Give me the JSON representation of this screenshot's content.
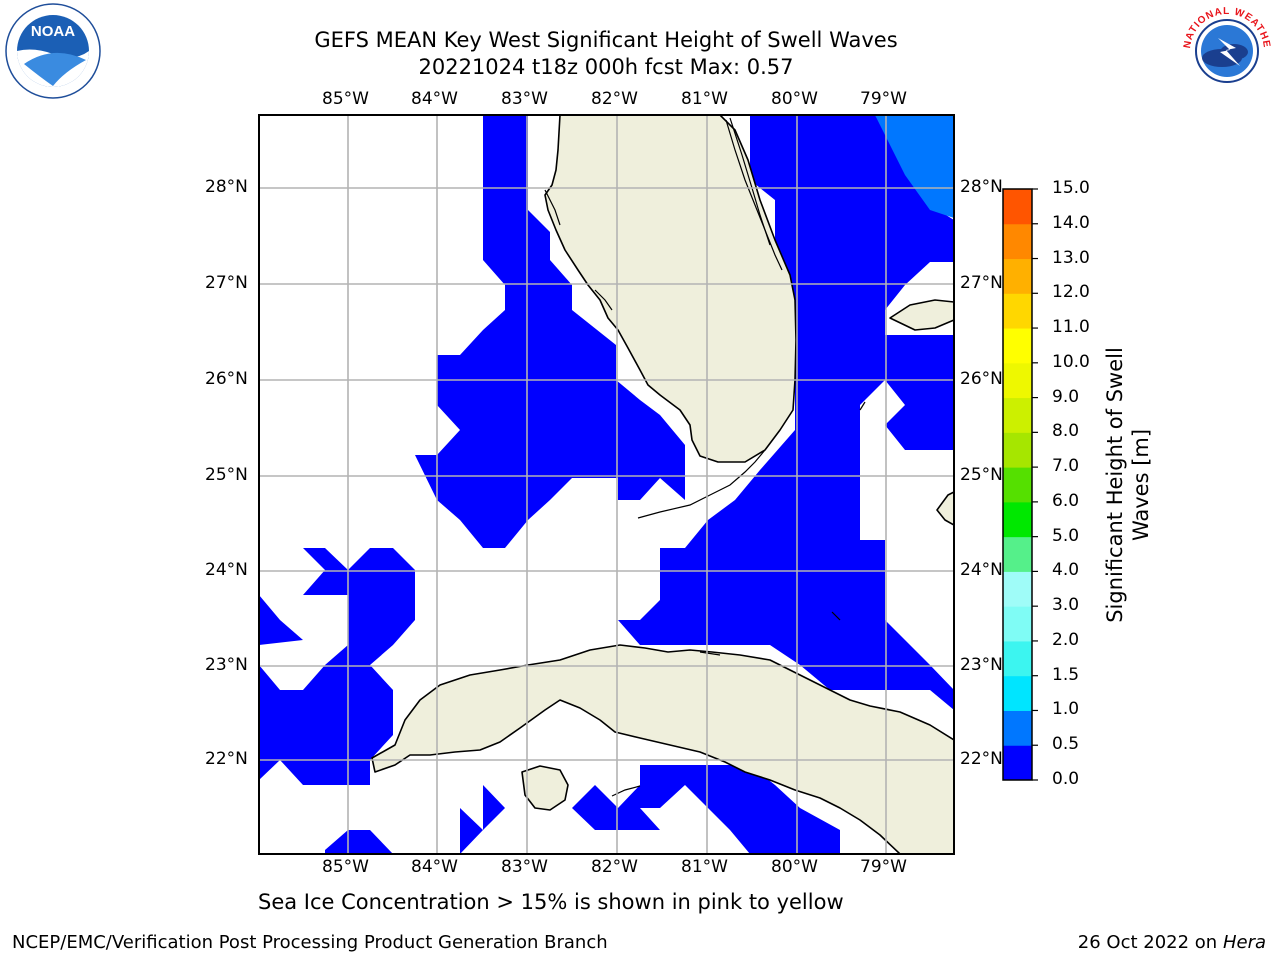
{
  "title": {
    "line1": "GEFS MEAN Key West Significant Height of Swell Waves",
    "line2": "20221024 t18z 000h fcst   Max: 0.57"
  },
  "axes": {
    "lon_labels": [
      "85°W",
      "84°W",
      "83°W",
      "82°W",
      "81°W",
      "80°W",
      "79°W"
    ],
    "lat_labels": [
      "28°N",
      "27°N",
      "26°N",
      "25°N",
      "24°N",
      "23°N",
      "22°N"
    ]
  },
  "colorbar": {
    "label_line1": "Significant Height of Swell",
    "label_line2": "Waves [m]",
    "ticks": [
      "0.0",
      "0.5",
      "1.0",
      "1.5",
      "2.0",
      "3.0",
      "4.0",
      "5.0",
      "6.0",
      "7.0",
      "8.0",
      "9.0",
      "10.0",
      "11.0",
      "12.0",
      "13.0",
      "14.0",
      "15.0"
    ],
    "colors": [
      "#0000ff",
      "#0077ff",
      "#00e5ff",
      "#3cf5f0",
      "#7ffcf5",
      "#9ffcf8",
      "#55f08a",
      "#00e800",
      "#55e000",
      "#a6e600",
      "#ccf000",
      "#eef800",
      "#ffff00",
      "#ffd700",
      "#ffb000",
      "#ff8800",
      "#ff5500",
      "#ff2200",
      "#ff0000"
    ]
  },
  "colors": {
    "land": "#efefdc",
    "swell_low": "#0000ff",
    "swell_mid": "#0077ff",
    "grid": "#b3b3b3"
  },
  "note": "Sea Ice Concentration > 15% is shown in pink to yellow",
  "footer": {
    "left": "NCEP/EMC/Verification Post Processing Product Generation Branch",
    "date": "26 Oct 2022 on ",
    "host": "Hera"
  },
  "logos": {
    "noaa_text": "NOAA",
    "nws_text": "NATIONAL WEATHER SERVICE"
  }
}
